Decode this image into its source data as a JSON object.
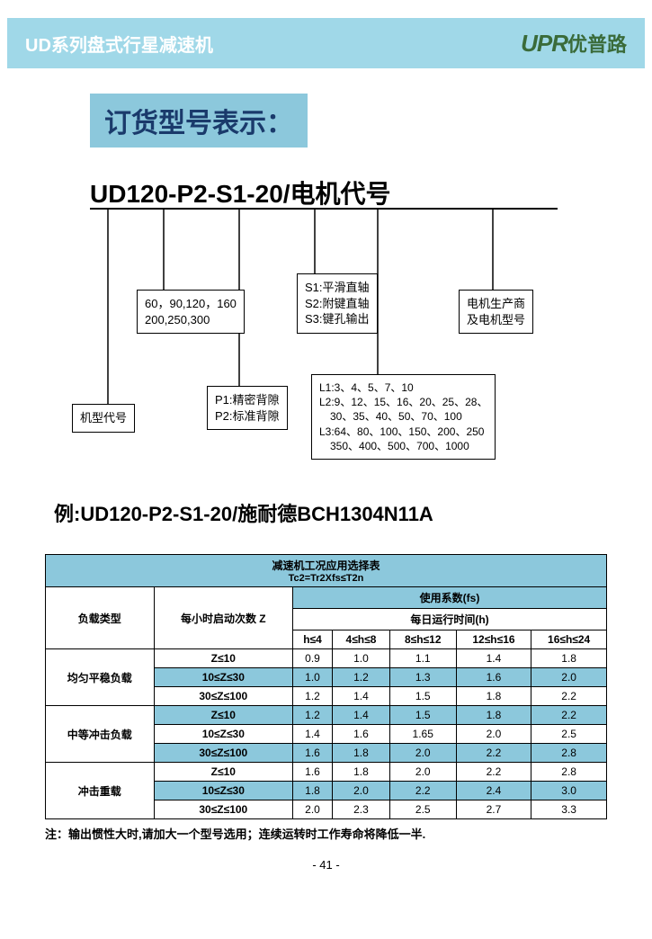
{
  "header": {
    "left": "UD系列盘式行星减速机",
    "brand_en": "UPR",
    "brand_cn": "优普路"
  },
  "title": "订货型号表示：",
  "model_string": "UD120-P2-S1-20/电机代号",
  "boxes": {
    "b1": {
      "lines": [
        "机型代号"
      ]
    },
    "b2": {
      "lines": [
        "60，90,120，160",
        "200,250,300"
      ]
    },
    "b3": {
      "lines": [
        "P1:精密背隙",
        "P2:标准背隙"
      ]
    },
    "b4": {
      "lines": [
        "S1:平滑直轴",
        "S2:附键直轴",
        "S3:键孔输出"
      ]
    },
    "b5": {
      "lines": [
        "L1:3、4、5、7、10",
        "L2:9、12、15、16、20、25、28、",
        "　30、35、40、50、70、100",
        "L3:64、80、100、150、200、250",
        "　350、400、500、700、1000"
      ]
    },
    "b6": {
      "lines": [
        "电机生产商",
        "及电机型号"
      ]
    }
  },
  "example": "例:UD120-P2-S1-20/施耐德BCH1304N11A",
  "table": {
    "title": "减速机工况应用选择表",
    "subtitle": "Tc2=Tr2Xfs≤T2n",
    "fs_header": "使用系数(fs)",
    "col_load": "负载类型",
    "col_z": "每小时启动次数 Z",
    "col_runtime": "每日运行时间(h)",
    "cols": [
      "h≤4",
      "4≤h≤8",
      "8≤h≤12",
      "12≤h≤16",
      "16≤h≤24"
    ],
    "groups": [
      {
        "label": "均匀平稳负载",
        "rows": [
          {
            "z": "Z≤10",
            "v": [
              "0.9",
              "1.0",
              "1.1",
              "1.4",
              "1.8"
            ],
            "blue": false
          },
          {
            "z": "10≤Z≤30",
            "v": [
              "1.0",
              "1.2",
              "1.3",
              "1.6",
              "2.0"
            ],
            "blue": true
          },
          {
            "z": "30≤Z≤100",
            "v": [
              "1.2",
              "1.4",
              "1.5",
              "1.8",
              "2.2"
            ],
            "blue": false
          }
        ]
      },
      {
        "label": "中等冲击负载",
        "rows": [
          {
            "z": "Z≤10",
            "v": [
              "1.2",
              "1.4",
              "1.5",
              "1.8",
              "2.2"
            ],
            "blue": true
          },
          {
            "z": "10≤Z≤30",
            "v": [
              "1.4",
              "1.6",
              "1.65",
              "2.0",
              "2.5"
            ],
            "blue": false
          },
          {
            "z": "30≤Z≤100",
            "v": [
              "1.6",
              "1.8",
              "2.0",
              "2.2",
              "2.8"
            ],
            "blue": true
          }
        ]
      },
      {
        "label": "冲击重载",
        "rows": [
          {
            "z": "Z≤10",
            "v": [
              "1.6",
              "1.8",
              "2.0",
              "2.2",
              "2.8"
            ],
            "blue": false
          },
          {
            "z": "10≤Z≤30",
            "v": [
              "1.8",
              "2.0",
              "2.2",
              "2.4",
              "3.0"
            ],
            "blue": true
          },
          {
            "z": "30≤Z≤100",
            "v": [
              "2.0",
              "2.3",
              "2.5",
              "2.7",
              "3.3"
            ],
            "blue": false
          }
        ]
      }
    ]
  },
  "note": "注：输出惯性大时,请加大一个型号选用；连续运转时工作寿命将降低一半.",
  "page": "- 41 -",
  "colors": {
    "header_bg": "#a0d8e8",
    "title_text": "#1a3a6b",
    "brand": "#3a6b3a"
  }
}
